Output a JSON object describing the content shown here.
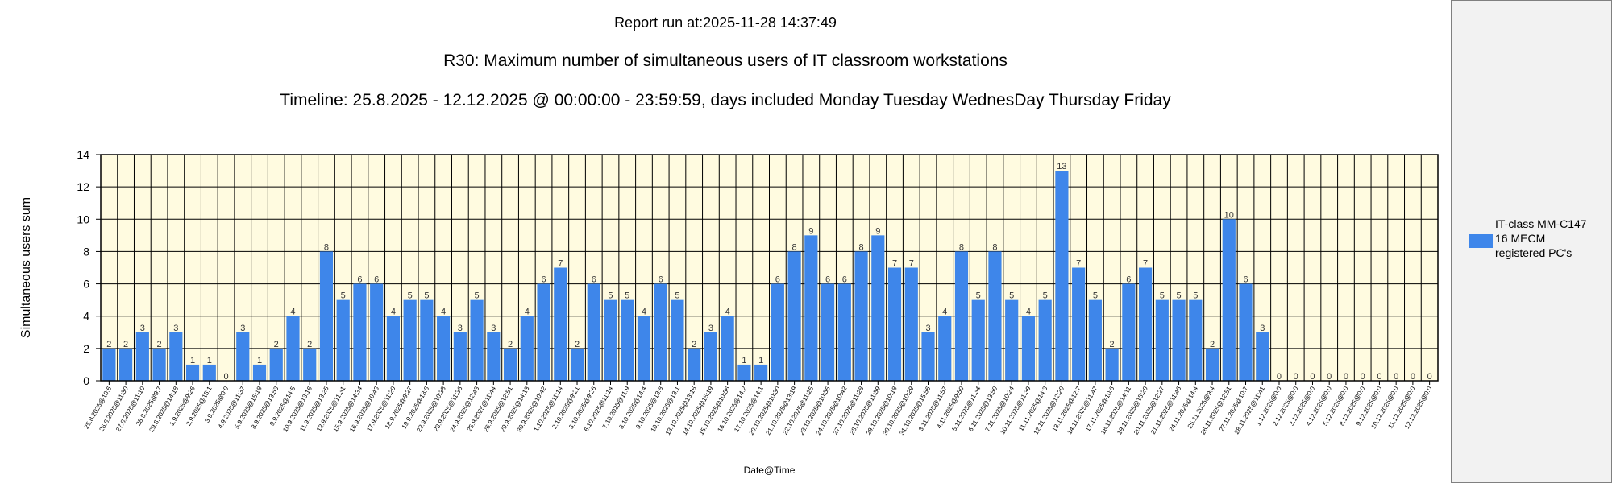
{
  "report_run": "Report run at:2025-11-28 14:37:49",
  "colors": {
    "bar": "#3e86ea",
    "plot_background": "#fffbe0",
    "grid": "#000000",
    "legend_background": "#f2f2f2"
  },
  "chart_data": {
    "type": "bar",
    "title": "R30: Maximum number of simultaneous users of IT classroom workstations",
    "subtitle": "Timeline: 25.8.2025  - 12.12.2025  @  00:00:00 -  23:59:59, days included Monday Tuesday WednesDay Thursday Friday",
    "xlabel": "Date@Time",
    "ylabel": "Simultaneous users sum",
    "ylim": [
      0,
      14
    ],
    "yticks": [
      "0",
      "2",
      "4",
      "6",
      "8",
      "10",
      "12",
      "14"
    ],
    "grid": true,
    "legend_position": "right",
    "categories": [
      "25.8.2025@10:6",
      "26.8.2025@11:30",
      "27.8.2025@11:10",
      "28.8.2025@9:7",
      "29.8.2025@14:18",
      "1.9.2025@9:26",
      "2.9.2025@15:1",
      "3.9.2025@0:0",
      "4.9.2025@11:37",
      "5.9.2025@15:18",
      "8.9.2025@13:53",
      "9.9.2025@14:5",
      "10.9.2025@13:16",
      "11.9.2025@13:25",
      "12.9.2025@11:31",
      "15.9.2025@14:34",
      "16.9.2025@10:43",
      "17.9.2025@11:20",
      "18.9.2025@9:27",
      "19.9.2025@13:8",
      "22.9.2025@10:38",
      "23.9.2025@11:36",
      "24.9.2025@12:43",
      "25.9.2025@11:44",
      "26.9.2025@12:51",
      "29.9.2025@14:13",
      "30.9.2025@10:42",
      "1.10.2025@11:14",
      "2.10.2025@9:21",
      "3.10.2025@9:26",
      "6.10.2025@11:14",
      "7.10.2025@11:9",
      "8.10.2025@14:4",
      "9.10.2025@13:8",
      "10.10.2025@13:1",
      "13.10.2025@13:16",
      "14.10.2025@15:19",
      "15.10.2025@10:56",
      "16.10.2025@14:2",
      "17.10.2025@14:1",
      "20.10.2025@10:30",
      "21.10.2025@13:19",
      "22.10.2025@11:25",
      "23.10.2025@10:55",
      "24.10.2025@10:42",
      "27.10.2025@11:28",
      "28.10.2025@11:59",
      "29.10.2025@10:18",
      "30.10.2025@10:29",
      "31.10.2025@15:56",
      "3.11.2025@11:57",
      "4.11.2025@9:50",
      "5.11.2025@11:34",
      "6.11.2025@13:50",
      "7.11.2025@10:24",
      "10.11.2025@11:39",
      "11.11.2025@14:3",
      "12.11.2025@12:20",
      "13.11.2025@12:7",
      "14.11.2025@11:47",
      "17.11.2025@10:6",
      "18.11.2025@14:11",
      "19.11.2025@15:20",
      "20.11.2025@12:27",
      "21.11.2025@11:46",
      "24.11.2025@14:4",
      "25.11.2025@9:4",
      "26.11.2025@12:51",
      "27.11.2025@10:7",
      "28.11.2025@11:41",
      "1.12.2025@0:0",
      "2.12.2025@0:0",
      "3.12.2025@0:0",
      "4.12.2025@0:0",
      "5.12.2025@0:0",
      "8.12.2025@0:0",
      "9.12.2025@0:0",
      "10.12.2025@0:0",
      "11.12.2025@0:0",
      "12.12.2025@0:0"
    ],
    "series": [
      {
        "name": "IT-class MM-C147\n16 MECM\nregistered PC's",
        "color": "#3e86ea",
        "values": [
          2,
          2,
          3,
          2,
          3,
          1,
          1,
          0,
          3,
          1,
          2,
          4,
          2,
          8,
          5,
          6,
          6,
          4,
          5,
          5,
          4,
          3,
          5,
          3,
          2,
          4,
          6,
          7,
          2,
          6,
          5,
          5,
          4,
          6,
          5,
          2,
          3,
          4,
          1,
          1,
          6,
          8,
          9,
          6,
          6,
          8,
          9,
          7,
          7,
          3,
          4,
          8,
          5,
          8,
          5,
          4,
          5,
          13,
          7,
          5,
          2,
          6,
          7,
          5,
          5,
          5,
          2,
          10,
          6,
          3,
          0,
          0,
          0,
          0,
          0,
          0,
          0,
          0,
          0,
          0
        ]
      }
    ]
  }
}
